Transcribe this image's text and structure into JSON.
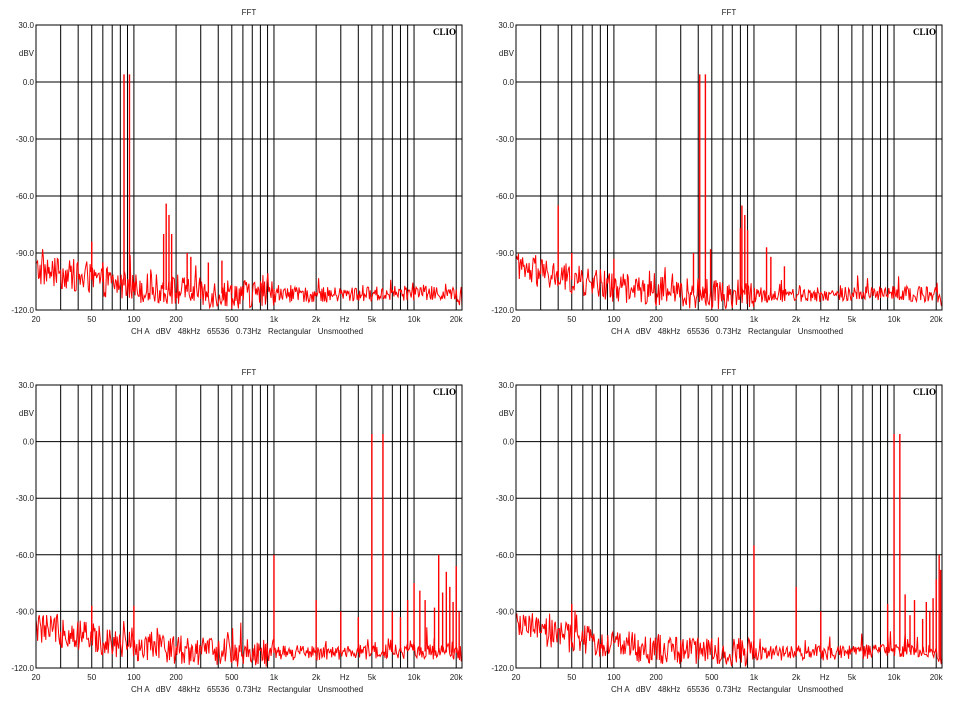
{
  "colors": {
    "trace": "#ff0000",
    "grid": "#000000",
    "plot_bg": "#ffffff",
    "text": "#222222"
  },
  "chart_data": [
    {
      "type": "line",
      "title": "FFT",
      "brand": "CLIO",
      "ylabel": "dBV",
      "xunit": "Hz",
      "x_scale": "log",
      "xlim": [
        20,
        22000
      ],
      "ylim": [
        -120,
        30
      ],
      "yticks": [
        30,
        0,
        -30,
        -60,
        -90,
        -120
      ],
      "ytick_labels": [
        "30.0",
        "0.0",
        "-30.0",
        "-60.0",
        "-90.0",
        "-120.0"
      ],
      "xtick_labels": [
        {
          "v": 20,
          "t": "20"
        },
        {
          "v": 50,
          "t": "50"
        },
        {
          "v": 100,
          "t": "100"
        },
        {
          "v": 200,
          "t": "200"
        },
        {
          "v": 500,
          "t": "500"
        },
        {
          "v": 1000,
          "t": "1k"
        },
        {
          "v": 2000,
          "t": "2k"
        },
        {
          "v": 5000,
          "t": "5k"
        },
        {
          "v": 10000,
          "t": "10k"
        },
        {
          "v": 20000,
          "t": "20k"
        }
      ],
      "footer": "CH A   dBV   48kHz   65536   0.73Hz   Rectangular   Unsmoothed",
      "grid": true,
      "noise_floor": [
        [
          20,
          -99
        ],
        [
          30,
          -101
        ],
        [
          50,
          -104
        ],
        [
          100,
          -108
        ],
        [
          300,
          -111
        ],
        [
          1000,
          -112
        ],
        [
          3000,
          -112
        ],
        [
          10000,
          -111
        ],
        [
          20000,
          -112
        ],
        [
          22000,
          -117
        ]
      ],
      "peaks": [
        {
          "x": 85,
          "y": 4
        },
        {
          "x": 93,
          "y": 4
        },
        {
          "x": 50,
          "y": -84
        },
        {
          "x": 60,
          "y": -95
        },
        {
          "x": 163,
          "y": -80
        },
        {
          "x": 170,
          "y": -64
        },
        {
          "x": 178,
          "y": -70
        },
        {
          "x": 186,
          "y": -80
        },
        {
          "x": 240,
          "y": -90
        },
        {
          "x": 255,
          "y": -92
        },
        {
          "x": 340,
          "y": -95
        },
        {
          "x": 425,
          "y": -94
        },
        {
          "x": 500,
          "y": -107
        },
        {
          "x": 1000,
          "y": -109
        }
      ]
    },
    {
      "type": "line",
      "title": "FFT",
      "brand": "CLIO",
      "ylabel": "dBV",
      "xunit": "Hz",
      "x_scale": "log",
      "xlim": [
        20,
        22000
      ],
      "ylim": [
        -120,
        30
      ],
      "yticks": [
        30,
        0,
        -30,
        -60,
        -90,
        -120
      ],
      "ytick_labels": [
        "30.0",
        "0.0",
        "-30.0",
        "-60.0",
        "-90.0",
        "-120.0"
      ],
      "xtick_labels": [
        {
          "v": 20,
          "t": "20"
        },
        {
          "v": 50,
          "t": "50"
        },
        {
          "v": 100,
          "t": "100"
        },
        {
          "v": 200,
          "t": "200"
        },
        {
          "v": 500,
          "t": "500"
        },
        {
          "v": 1000,
          "t": "1k"
        },
        {
          "v": 2000,
          "t": "2k"
        },
        {
          "v": 5000,
          "t": "5k"
        },
        {
          "v": 10000,
          "t": "10k"
        },
        {
          "v": 20000,
          "t": "20k"
        }
      ],
      "footer": "CH A   dBV   48kHz   65536   0.73Hz   Rectangular   Unsmoothed",
      "grid": true,
      "noise_floor": [
        [
          20,
          -99
        ],
        [
          30,
          -101
        ],
        [
          50,
          -104
        ],
        [
          100,
          -108
        ],
        [
          300,
          -111
        ],
        [
          1000,
          -112
        ],
        [
          3000,
          -112
        ],
        [
          10000,
          -111
        ],
        [
          20000,
          -112
        ],
        [
          22000,
          -117
        ]
      ],
      "peaks": [
        {
          "x": 410,
          "y": 4
        },
        {
          "x": 450,
          "y": 4
        },
        {
          "x": 40,
          "y": -65
        },
        {
          "x": 50,
          "y": -90
        },
        {
          "x": 100,
          "y": -93
        },
        {
          "x": 370,
          "y": -90
        },
        {
          "x": 490,
          "y": -88
        },
        {
          "x": 800,
          "y": -77
        },
        {
          "x": 820,
          "y": -65
        },
        {
          "x": 860,
          "y": -70
        },
        {
          "x": 900,
          "y": -78
        },
        {
          "x": 1230,
          "y": -87
        },
        {
          "x": 1320,
          "y": -92
        },
        {
          "x": 1650,
          "y": -97
        }
      ]
    },
    {
      "type": "line",
      "title": "FFT",
      "brand": "CLIO",
      "ylabel": "dBV",
      "xunit": "Hz",
      "x_scale": "log",
      "xlim": [
        20,
        22000
      ],
      "ylim": [
        -120,
        30
      ],
      "yticks": [
        30,
        0,
        -30,
        -60,
        -90,
        -120
      ],
      "ytick_labels": [
        "30.0",
        "0.0",
        "-30.0",
        "-60.0",
        "-90.0",
        "-120.0"
      ],
      "xtick_labels": [
        {
          "v": 20,
          "t": "20"
        },
        {
          "v": 50,
          "t": "50"
        },
        {
          "v": 100,
          "t": "100"
        },
        {
          "v": 200,
          "t": "200"
        },
        {
          "v": 500,
          "t": "500"
        },
        {
          "v": 1000,
          "t": "1k"
        },
        {
          "v": 2000,
          "t": "2k"
        },
        {
          "v": 5000,
          "t": "5k"
        },
        {
          "v": 10000,
          "t": "10k"
        },
        {
          "v": 20000,
          "t": "20k"
        }
      ],
      "footer": "CH A   dBV   48kHz   65536   0.73Hz   Rectangular   Unsmoothed",
      "grid": true,
      "noise_floor": [
        [
          20,
          -99
        ],
        [
          30,
          -101
        ],
        [
          50,
          -104
        ],
        [
          100,
          -108
        ],
        [
          300,
          -111
        ],
        [
          1000,
          -112
        ],
        [
          3000,
          -112
        ],
        [
          10000,
          -111
        ],
        [
          20000,
          -112
        ],
        [
          22000,
          -117
        ]
      ],
      "peaks": [
        {
          "x": 5000,
          "y": 4
        },
        {
          "x": 6000,
          "y": 4
        },
        {
          "x": 50,
          "y": -87
        },
        {
          "x": 100,
          "y": -87
        },
        {
          "x": 1000,
          "y": -60
        },
        {
          "x": 2000,
          "y": -84
        },
        {
          "x": 3000,
          "y": -90
        },
        {
          "x": 4000,
          "y": -93
        },
        {
          "x": 7000,
          "y": -90
        },
        {
          "x": 8000,
          "y": -93
        },
        {
          "x": 9000,
          "y": -84
        },
        {
          "x": 10000,
          "y": -75
        },
        {
          "x": 11000,
          "y": -79
        },
        {
          "x": 12000,
          "y": -84
        },
        {
          "x": 14000,
          "y": -88
        },
        {
          "x": 15000,
          "y": -60
        },
        {
          "x": 16000,
          "y": -80
        },
        {
          "x": 17000,
          "y": -69
        },
        {
          "x": 18000,
          "y": -77
        },
        {
          "x": 19000,
          "y": -85
        },
        {
          "x": 20000,
          "y": -66
        },
        {
          "x": 21000,
          "y": -90
        }
      ]
    },
    {
      "type": "line",
      "title": "FFT",
      "brand": "CLIO",
      "ylabel": "dBV",
      "xunit": "Hz",
      "x_scale": "log",
      "xlim": [
        20,
        22000
      ],
      "ylim": [
        -120,
        30
      ],
      "yticks": [
        30,
        0,
        -30,
        -60,
        -90,
        -120
      ],
      "ytick_labels": [
        "30.0",
        "0.0",
        "-30.0",
        "-60.0",
        "-90.0",
        "-120.0"
      ],
      "xtick_labels": [
        {
          "v": 20,
          "t": "20"
        },
        {
          "v": 50,
          "t": "50"
        },
        {
          "v": 100,
          "t": "100"
        },
        {
          "v": 200,
          "t": "200"
        },
        {
          "v": 500,
          "t": "500"
        },
        {
          "v": 1000,
          "t": "1k"
        },
        {
          "v": 2000,
          "t": "2k"
        },
        {
          "v": 5000,
          "t": "5k"
        },
        {
          "v": 10000,
          "t": "10k"
        },
        {
          "v": 20000,
          "t": "20k"
        }
      ],
      "footer": "CH A   dBV   48kHz   65536   0.73Hz   Rectangular   Unsmoothed",
      "grid": true,
      "noise_floor": [
        [
          20,
          -99
        ],
        [
          30,
          -101
        ],
        [
          50,
          -104
        ],
        [
          100,
          -108
        ],
        [
          300,
          -111
        ],
        [
          1000,
          -112
        ],
        [
          3000,
          -112
        ],
        [
          10000,
          -111
        ],
        [
          20000,
          -112
        ],
        [
          22000,
          -117
        ]
      ],
      "peaks": [
        {
          "x": 10000,
          "y": 4
        },
        {
          "x": 11000,
          "y": 4
        },
        {
          "x": 50,
          "y": -86
        },
        {
          "x": 1000,
          "y": -55
        },
        {
          "x": 2000,
          "y": -77
        },
        {
          "x": 3000,
          "y": -90
        },
        {
          "x": 9000,
          "y": -86
        },
        {
          "x": 12000,
          "y": -81
        },
        {
          "x": 13000,
          "y": -92
        },
        {
          "x": 14000,
          "y": -84
        },
        {
          "x": 16000,
          "y": -94
        },
        {
          "x": 17000,
          "y": -85
        },
        {
          "x": 18000,
          "y": -90
        },
        {
          "x": 19000,
          "y": -83
        },
        {
          "x": 20000,
          "y": -73
        },
        {
          "x": 21000,
          "y": -60
        },
        {
          "x": 21500,
          "y": -68
        }
      ]
    }
  ]
}
